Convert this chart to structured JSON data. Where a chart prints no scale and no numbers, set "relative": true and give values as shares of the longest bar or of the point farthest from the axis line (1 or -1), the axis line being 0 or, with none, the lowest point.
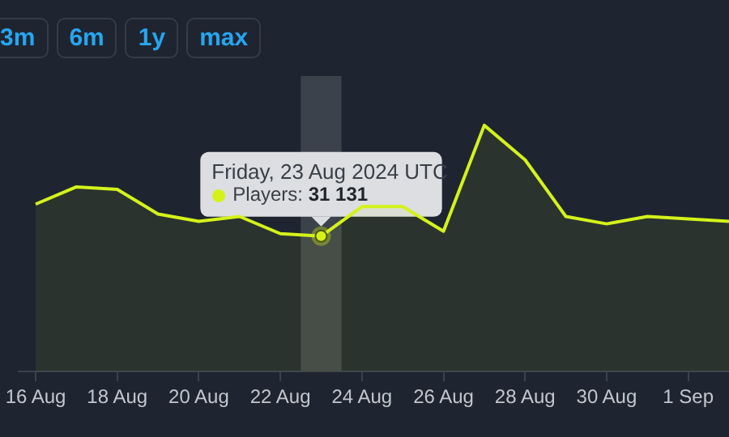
{
  "chart_data": {
    "type": "area",
    "relative": true,
    "x": [
      "2024-08-16",
      "2024-08-17",
      "2024-08-18",
      "2024-08-19",
      "2024-08-20",
      "2024-08-21",
      "2024-08-22",
      "2024-08-23",
      "2024-08-24",
      "2024-08-25",
      "2024-08-26",
      "2024-08-27",
      "2024-08-28",
      "2024-08-29",
      "2024-08-30",
      "2024-08-31",
      "2024-09-01",
      "2024-09-02"
    ],
    "series": [
      {
        "color": "#d4f21a",
        "values": [
          0.68,
          0.75,
          0.74,
          0.64,
          0.61,
          0.63,
          0.56,
          0.55,
          0.67,
          0.67,
          0.57,
          1,
          0.86,
          0.63,
          0.6,
          0.63,
          0.62,
          0.61
        ]
      }
    ],
    "xlim": [
      "2024-08-15T14:00",
      "2024-09-02"
    ],
    "xticks": [
      {
        "value": "2024-08-16",
        "label": "16 Aug"
      },
      {
        "value": "2024-08-18",
        "label": "18 Aug"
      },
      {
        "value": "2024-08-20",
        "label": "20 Aug"
      },
      {
        "value": "2024-08-22",
        "label": "22 Aug"
      },
      {
        "value": "2024-08-24",
        "label": "24 Aug"
      },
      {
        "value": "2024-08-26",
        "label": "26 Aug"
      },
      {
        "value": "2024-08-28",
        "label": "28 Aug"
      },
      {
        "value": "2024-08-30",
        "label": "30 Aug"
      },
      {
        "value": "2024-09-01",
        "label": "1 Sep"
      }
    ],
    "bands": [
      {
        "axis": "x",
        "from": "2024-08-22T12:00",
        "to": "2024-08-23T12:00",
        "color": "#3c424b"
      }
    ],
    "annotations": [
      "3m",
      "6m",
      "1y",
      "max",
      {
        "text": "Friday, 23 Aug 2024 UTC",
        "x": "2024-08-23",
        "y": 0.55
      },
      {
        "text": "Players: 31 131",
        "x": "2024-08-23",
        "y": 0.55
      }
    ],
    "legend": false,
    "marker": "none",
    "line_style": "solid"
  }
}
